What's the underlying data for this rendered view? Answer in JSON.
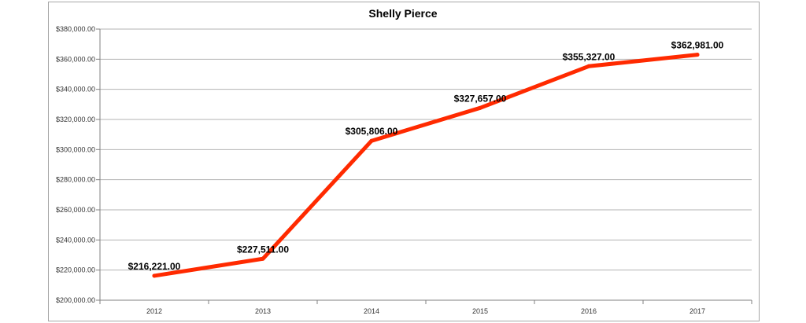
{
  "chart_data": {
    "type": "line",
    "title": "Shelly Pierce",
    "xlabel": "",
    "ylabel": "",
    "categories": [
      "2012",
      "2013",
      "2014",
      "2015",
      "2016",
      "2017"
    ],
    "series": [
      {
        "values": [
          216221.0,
          227511.0,
          305806.0,
          327657.0,
          355327.0,
          362981.0
        ],
        "data_labels": [
          "$216,221.00",
          "$227,511.00",
          "$305,806.00",
          "$327,657.00",
          "$355,327.00",
          "$362,981.00"
        ],
        "color": "#ff2a00"
      }
    ],
    "ylim": [
      200000,
      380000
    ],
    "y_ticks": [
      200000,
      220000,
      240000,
      260000,
      280000,
      300000,
      320000,
      340000,
      360000,
      380000
    ],
    "y_tick_labels": [
      "$200,000.00",
      "$220,000.00",
      "$240,000.00",
      "$260,000.00",
      "$280,000.00",
      "$300,000.00",
      "$320,000.00",
      "$340,000.00",
      "$360,000.00",
      "$380,000.00"
    ],
    "grid": true,
    "gridline_color": "#b3b3b3",
    "legend": "none"
  }
}
